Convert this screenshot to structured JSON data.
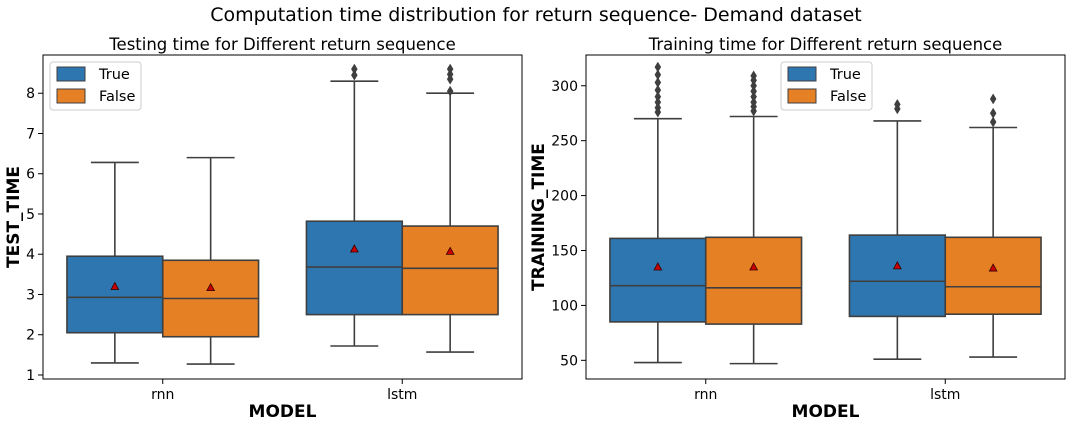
{
  "figure": {
    "suptitle": "Computation time distribution for return sequence- Demand dataset"
  },
  "colors": {
    "true": "#2e76b0",
    "false": "#e58025",
    "line": "#3f3f3f",
    "mean_marker": "#cc0000"
  },
  "chart_data": [
    {
      "type": "boxplot",
      "title": "Testing time for Different return sequence",
      "xlabel": "MODEL",
      "ylabel": "TEST_TIME",
      "categories": [
        "rnn",
        "lstm"
      ],
      "ylim": [
        0.9,
        8.95
      ],
      "yticks": [
        1,
        2,
        3,
        4,
        5,
        6,
        7,
        8
      ],
      "legend": {
        "position": "top-left",
        "entries": [
          "True",
          "False"
        ]
      },
      "grid": false,
      "series": [
        {
          "name": "True",
          "boxes": [
            {
              "category": "rnn",
              "whisker_low": 1.3,
              "q1": 2.05,
              "median": 2.93,
              "q3": 3.95,
              "whisker_high": 6.28,
              "mean": 3.2,
              "outliers": []
            },
            {
              "category": "lstm",
              "whisker_low": 1.72,
              "q1": 2.5,
              "median": 3.68,
              "q3": 4.82,
              "whisker_high": 8.3,
              "mean": 4.13,
              "outliers": [
                8.45,
                8.6
              ]
            }
          ]
        },
        {
          "name": "False",
          "boxes": [
            {
              "category": "rnn",
              "whisker_low": 1.27,
              "q1": 1.95,
              "median": 2.9,
              "q3": 3.85,
              "whisker_high": 6.4,
              "mean": 3.17,
              "outliers": []
            },
            {
              "category": "lstm",
              "whisker_low": 1.57,
              "q1": 2.5,
              "median": 3.65,
              "q3": 4.7,
              "whisker_high": 8.0,
              "mean": 4.07,
              "outliers": [
                8.05,
                8.35,
                8.47,
                8.6
              ]
            }
          ]
        }
      ]
    },
    {
      "type": "boxplot",
      "title": "Training time for Different return sequence",
      "xlabel": "MODEL",
      "ylabel": "TRAINING_TIME",
      "categories": [
        "rnn",
        "lstm"
      ],
      "ylim": [
        33,
        328
      ],
      "yticks": [
        50,
        100,
        150,
        200,
        250,
        300
      ],
      "legend": {
        "position": "upper-center",
        "entries": [
          "True",
          "False"
        ]
      },
      "grid": false,
      "series": [
        {
          "name": "True",
          "boxes": [
            {
              "category": "rnn",
              "whisker_low": 48,
              "q1": 85,
              "median": 118,
              "q3": 161,
              "whisker_high": 270,
              "mean": 135,
              "outliers": [
                276,
                280,
                285,
                290,
                296,
                303,
                310,
                317
              ]
            },
            {
              "category": "lstm",
              "whisker_low": 51,
              "q1": 90,
              "median": 122,
              "q3": 164,
              "whisker_high": 268,
              "mean": 136,
              "outliers": [
                279,
                283
              ]
            }
          ]
        },
        {
          "name": "False",
          "boxes": [
            {
              "category": "rnn",
              "whisker_low": 47,
              "q1": 83,
              "median": 116,
              "q3": 162,
              "whisker_high": 272,
              "mean": 135,
              "outliers": [
                277,
                281,
                285,
                290,
                295,
                300,
                305,
                309
              ]
            },
            {
              "category": "lstm",
              "whisker_low": 53,
              "q1": 92,
              "median": 117,
              "q3": 162,
              "whisker_high": 262,
              "mean": 134,
              "outliers": [
                267,
                275,
                288
              ]
            }
          ]
        }
      ]
    }
  ]
}
